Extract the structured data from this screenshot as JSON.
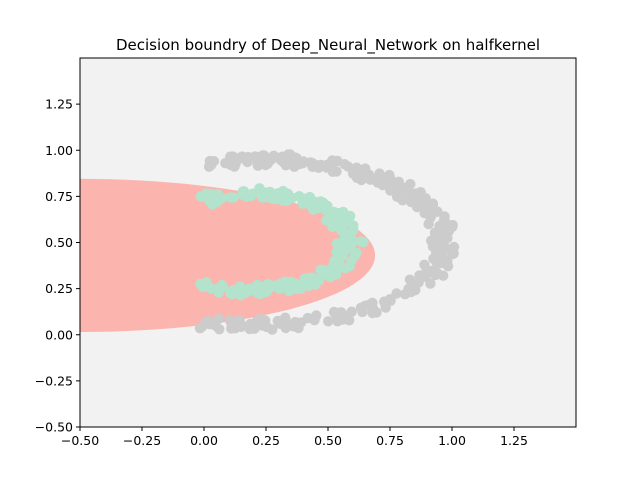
{
  "chart_data": {
    "type": "scatter",
    "title": "Decision boundry of Deep_Neural_Network on halfkernel",
    "xlabel": "",
    "ylabel": "",
    "xlim": [
      -0.5,
      1.5
    ],
    "ylim": [
      -0.5,
      1.5
    ],
    "x_ticks": [
      -0.5,
      -0.25,
      0.0,
      0.25,
      0.5,
      0.75,
      1.0,
      1.25
    ],
    "y_ticks": [
      -0.5,
      -0.25,
      0.0,
      0.25,
      0.5,
      0.75,
      1.0,
      1.25
    ],
    "x_tick_labels": [
      "−0.50",
      "−0.25",
      "0.00",
      "0.25",
      "0.50",
      "0.75",
      "1.00",
      "1.25"
    ],
    "y_tick_labels": [
      "−0.50",
      "−0.25",
      "0.00",
      "0.25",
      "0.50",
      "0.75",
      "1.00",
      "1.25"
    ],
    "background_color": "#f2f2f2",
    "decision_region": {
      "color": "#fbb4ae",
      "shape": "half-ellipse",
      "center": [
        -0.5,
        0.43
      ],
      "x_extent": 1.19,
      "y_half_height": 0.415
    },
    "series": [
      {
        "color": "#cccccc",
        "shape": "outer-arc",
        "center": [
          0.2,
          0.5
        ],
        "x_radius": 0.77,
        "y_radius": 0.45,
        "x_start": 0.0,
        "points": 260
      },
      {
        "color": "#b3e2cd",
        "shape": "inner-arc",
        "center": [
          0.2,
          0.5
        ],
        "x_radius": 0.39,
        "y_radius": 0.26,
        "x_start": 0.0,
        "points": 200
      }
    ]
  }
}
